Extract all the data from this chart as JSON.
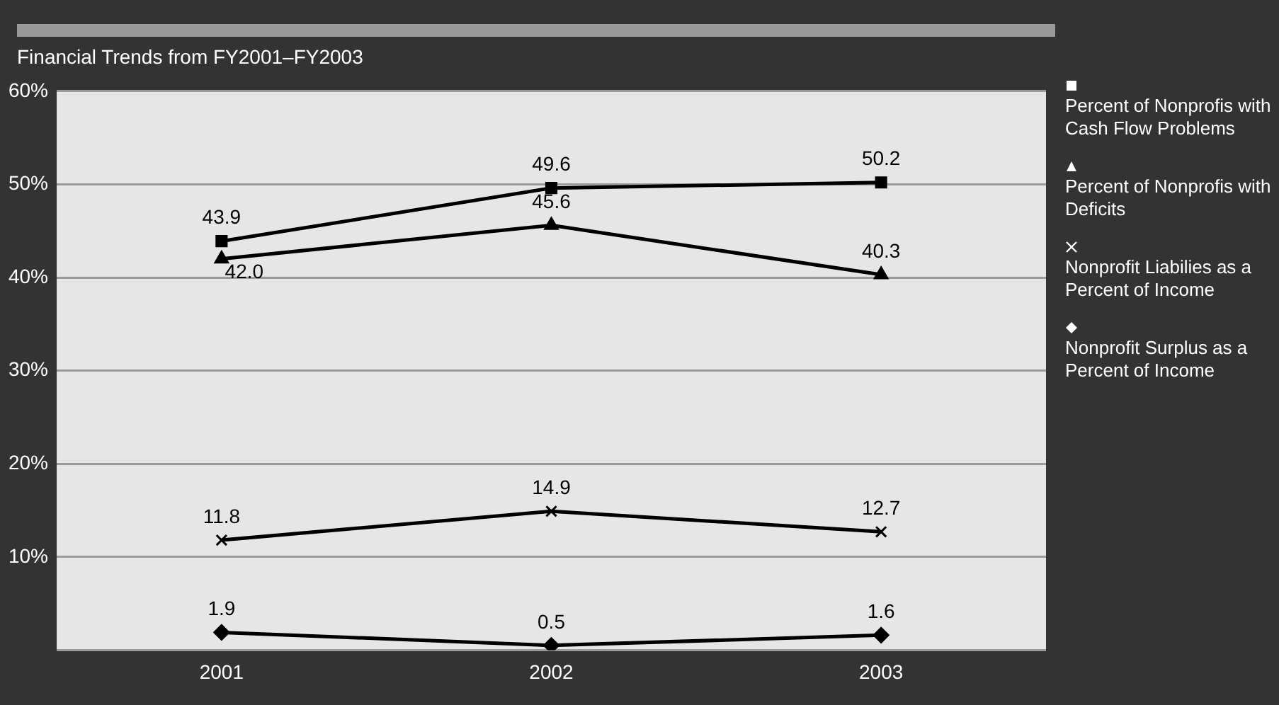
{
  "chart_data": {
    "type": "line",
    "title": "Financial Trends from FY2001–FY2003",
    "categories": [
      "2001",
      "2002",
      "2003"
    ],
    "series": [
      {
        "name": "Percent of Nonprofis with Cash Flow Problems",
        "color": "#000000",
        "marker": "square",
        "values": [
          43.9,
          49.6,
          50.2
        ],
        "value_labels": [
          "43.9",
          "49.6",
          "50.2"
        ]
      },
      {
        "name": "Percent of Nonprofis with Deficits",
        "color": "#000000",
        "marker": "triangle",
        "values": [
          42.0,
          45.6,
          40.3
        ],
        "value_labels": [
          "42.0",
          "45.6",
          "40.3"
        ]
      },
      {
        "name": "Nonprofit Liabilies as a Percent of Income",
        "color": "#000000",
        "marker": "cross",
        "values": [
          11.8,
          14.9,
          12.7
        ],
        "value_labels": [
          "11.8",
          "14.9",
          "12.7"
        ]
      },
      {
        "name": "Nonprofit Surplus as a Percent of Income",
        "color": "#000000",
        "marker": "diamond",
        "values": [
          1.9,
          0.5,
          1.6
        ],
        "value_labels": [
          "1.9",
          "0.5",
          "1.6"
        ]
      }
    ],
    "ylim": [
      0,
      60
    ],
    "yticks": [
      {
        "value": 0,
        "label": null
      },
      {
        "value": 10,
        "label": "10%"
      },
      {
        "value": 20,
        "label": "20%"
      },
      {
        "value": 30,
        "label": "30%"
      },
      {
        "value": 40,
        "label": "40%"
      },
      {
        "value": 50,
        "label": "50%"
      },
      {
        "value": 60,
        "label": "60%"
      }
    ],
    "grid": "y",
    "legend": "right",
    "line_style": "solid"
  }
}
